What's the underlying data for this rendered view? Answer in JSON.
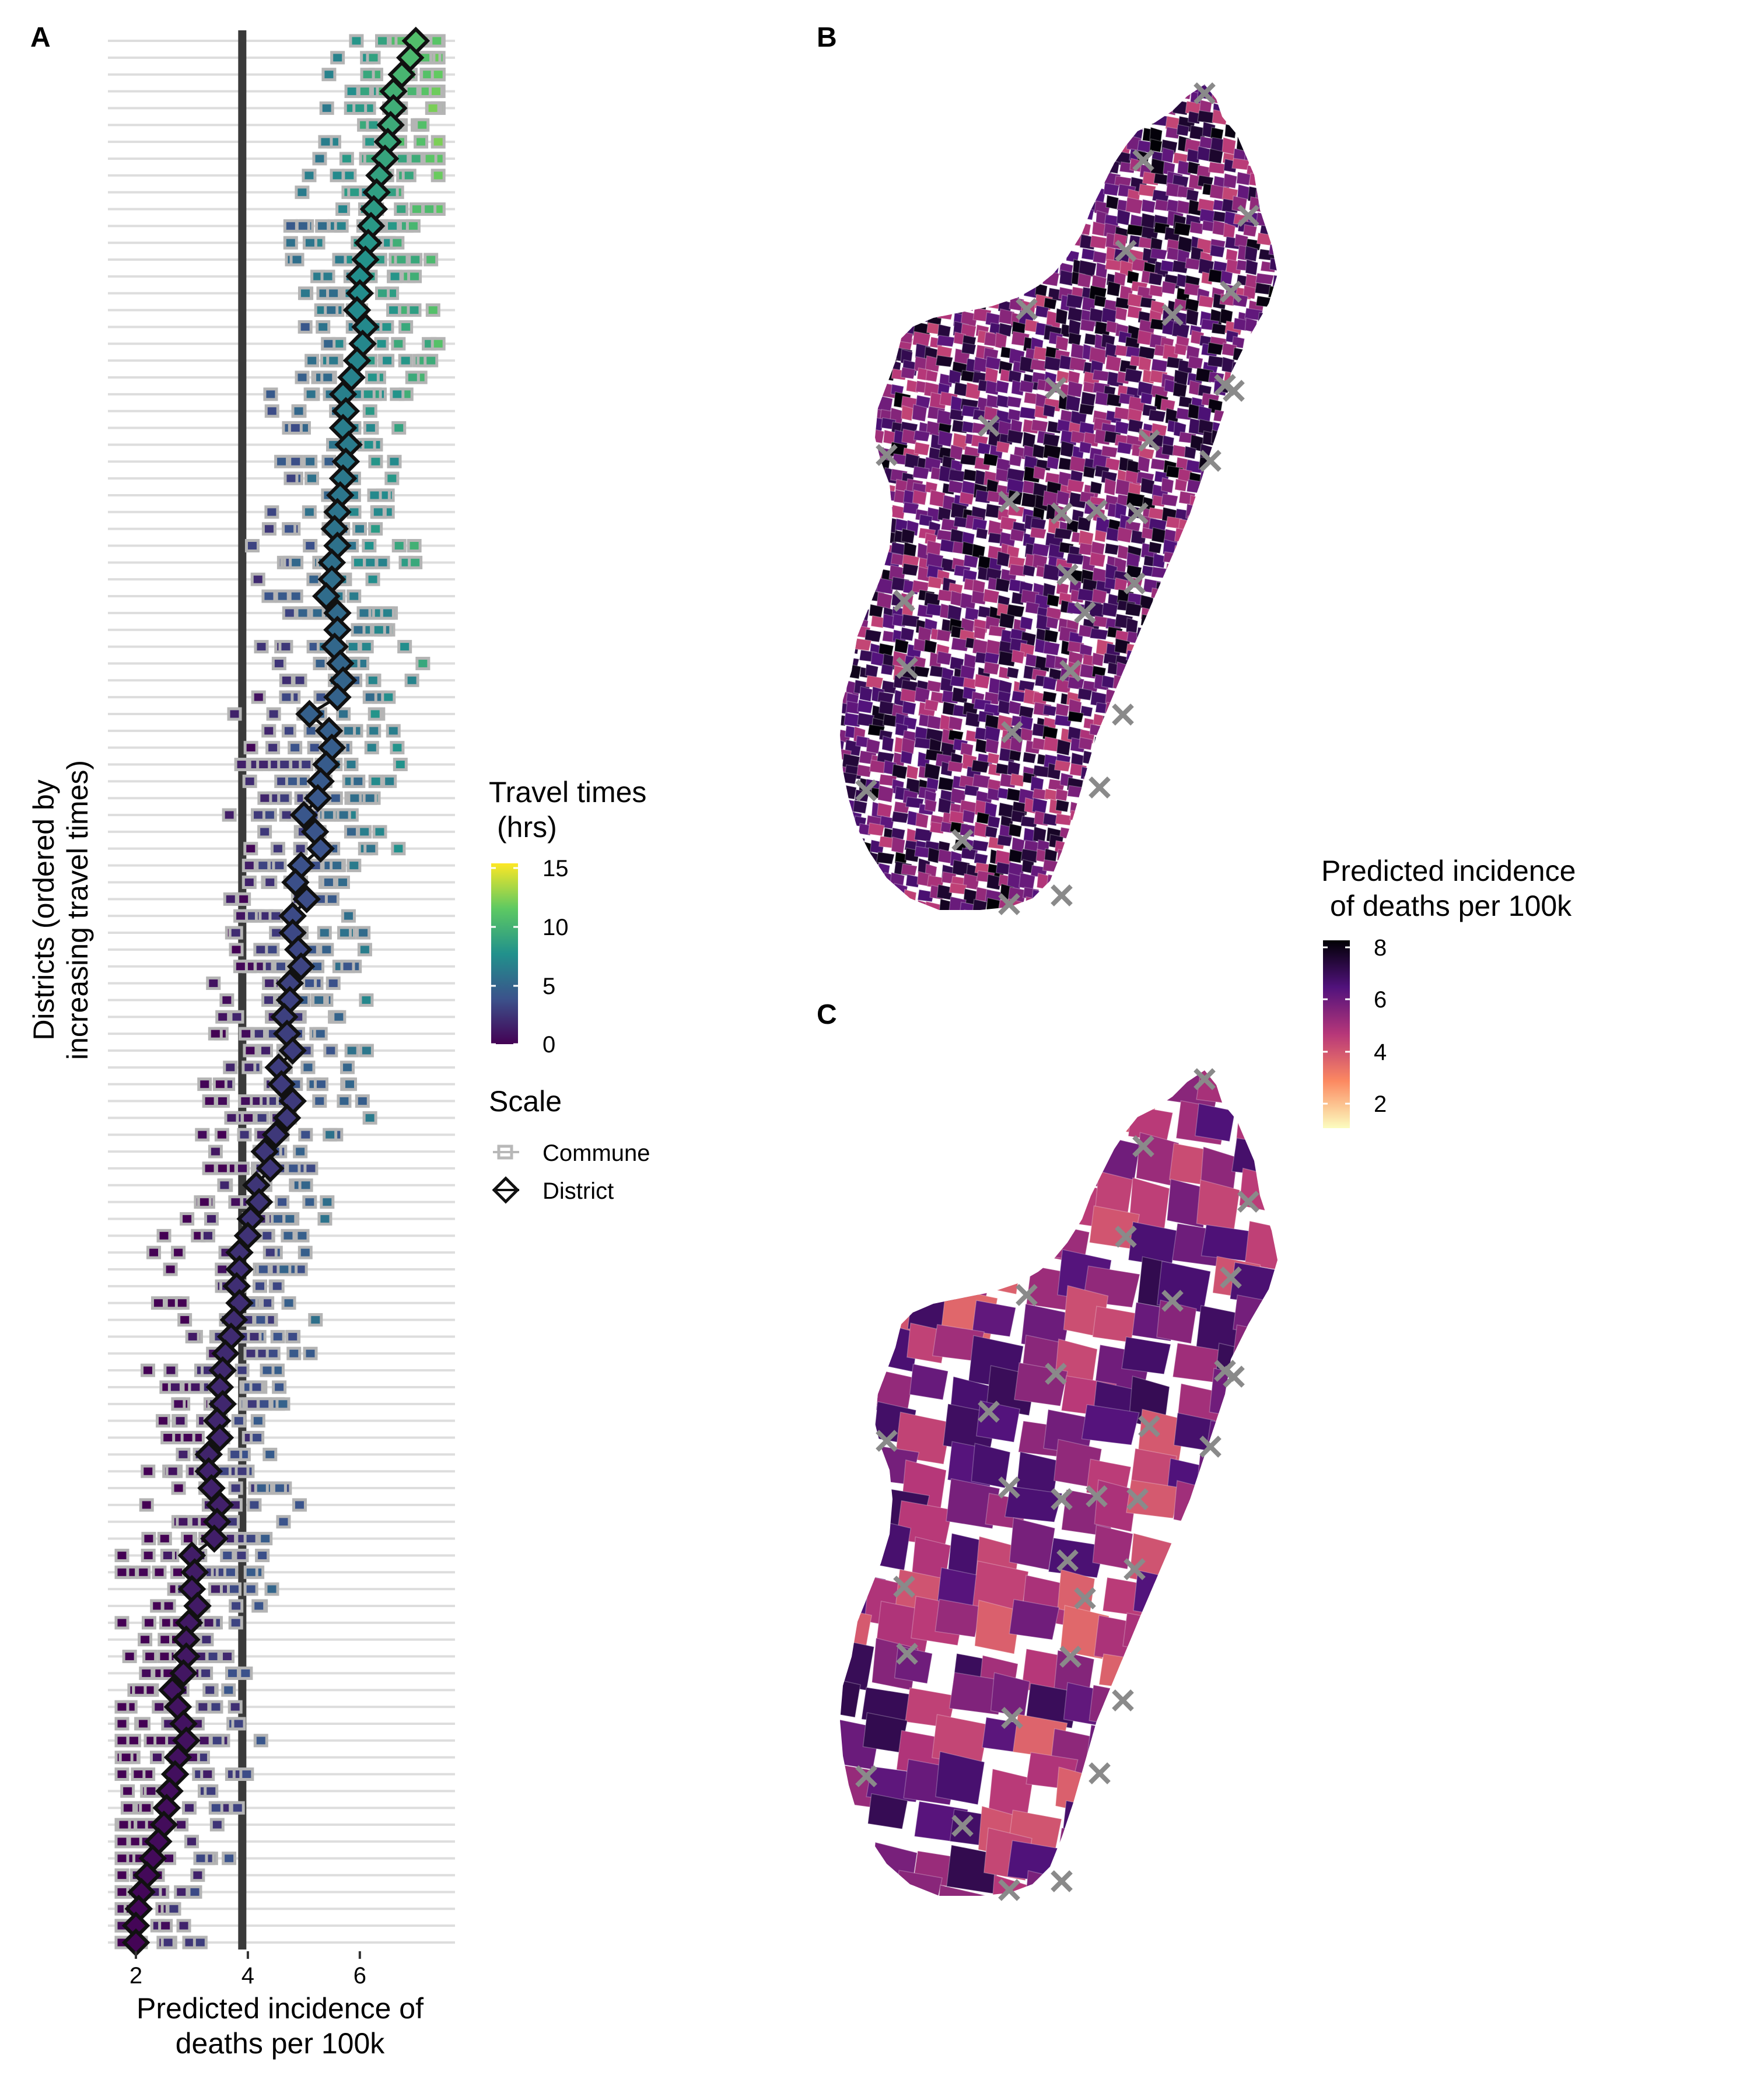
{
  "panels": {
    "a": "A",
    "b": "B",
    "c": "C"
  },
  "chart_data": [
    {
      "panel": "A",
      "type": "scatter",
      "xlabel_line1": "Predicted incidence of",
      "xlabel_line2": "deaths per 100k",
      "ylabel_line1": "Districts (ordered by",
      "ylabel_line2": "increasing travel times)",
      "xticks": [
        "2",
        "4",
        "6"
      ],
      "xlim": [
        1.5,
        7.7
      ],
      "vline_x": 3.9,
      "n_districts": 114,
      "district_values": [
        7.0,
        6.9,
        6.75,
        6.6,
        6.6,
        6.55,
        6.5,
        6.45,
        6.35,
        6.3,
        6.25,
        6.2,
        6.15,
        6.1,
        6.0,
        6.0,
        5.95,
        6.1,
        6.05,
        5.95,
        5.85,
        5.7,
        5.75,
        5.7,
        5.8,
        5.75,
        5.7,
        5.65,
        5.6,
        5.55,
        5.6,
        5.5,
        5.5,
        5.4,
        5.6,
        5.6,
        5.55,
        5.65,
        5.7,
        5.6,
        5.1,
        5.45,
        5.5,
        5.4,
        5.3,
        5.25,
        5.0,
        5.2,
        5.3,
        4.95,
        4.85,
        5.05,
        4.8,
        4.8,
        4.9,
        4.95,
        4.75,
        4.75,
        4.65,
        4.7,
        4.8,
        4.55,
        4.6,
        4.8,
        4.7,
        4.5,
        4.3,
        4.4,
        4.15,
        4.2,
        4.05,
        4.0,
        3.85,
        3.85,
        3.8,
        3.85,
        3.75,
        3.7,
        3.6,
        3.55,
        3.5,
        3.55,
        3.45,
        3.5,
        3.3,
        3.3,
        3.35,
        3.5,
        3.45,
        3.4,
        3.0,
        3.05,
        3.0,
        3.1,
        2.95,
        2.9,
        2.9,
        2.85,
        2.65,
        2.75,
        2.85,
        2.9,
        2.75,
        2.7,
        2.6,
        2.55,
        2.5,
        2.4,
        2.3,
        2.2,
        2.1,
        2.05,
        2.0,
        2.0
      ],
      "district_travel_hrs": [
        10.5,
        10.2,
        9.9,
        9.6,
        9.4,
        9.2,
        9.0,
        8.8,
        8.6,
        8.4,
        8.2,
        8.0,
        7.8,
        7.6,
        7.4,
        7.2,
        7.1,
        7.0,
        6.9,
        6.8,
        6.6,
        6.5,
        6.4,
        6.3,
        6.2,
        6.1,
        6.0,
        5.9,
        5.8,
        5.7,
        5.6,
        5.5,
        5.4,
        5.3,
        5.2,
        5.1,
        5.0,
        4.9,
        4.8,
        4.7,
        4.6,
        4.5,
        4.4,
        4.3,
        4.2,
        4.1,
        4.0,
        3.9,
        3.8,
        3.7,
        3.6,
        3.5,
        3.4,
        3.3,
        3.2,
        3.1,
        3.0,
        2.95,
        2.9,
        2.85,
        2.8,
        2.75,
        2.7,
        2.65,
        2.6,
        2.55,
        2.5,
        2.45,
        2.4,
        2.35,
        2.3,
        2.25,
        2.2,
        2.15,
        2.1,
        2.05,
        2.0,
        1.95,
        1.9,
        1.85,
        1.8,
        1.75,
        1.7,
        1.65,
        1.6,
        1.55,
        1.5,
        1.45,
        1.4,
        1.35,
        1.3,
        1.25,
        1.2,
        1.15,
        1.1,
        1.05,
        1.0,
        0.95,
        0.9,
        0.85,
        0.8,
        0.75,
        0.7,
        0.65,
        0.6,
        0.55,
        0.5,
        0.45,
        0.4,
        0.35,
        0.3,
        0.25,
        0.2,
        0.15
      ],
      "commune_points_note": "",
      "legend": {
        "travel_title_line1": "Travel times",
        "travel_title_line2": "(hrs)",
        "travel_ticks": [
          "15",
          "10",
          "5",
          "0"
        ],
        "travel_range": [
          0,
          15
        ],
        "scale_title": "Scale",
        "scale_items": [
          "Commune",
          "District"
        ]
      },
      "colormap": "viridis"
    },
    {
      "panel": "B",
      "type": "map",
      "scale": "Commune",
      "colormap": "magma_reversed"
    },
    {
      "panel": "C",
      "type": "map",
      "scale": "District",
      "colormap": "magma_reversed"
    }
  ],
  "map_legend": {
    "title_line1": "Predicted incidence",
    "title_line2": "of deaths per 100k",
    "ticks": [
      "8",
      "6",
      "4",
      "2"
    ],
    "range": [
      1,
      8.2
    ]
  }
}
